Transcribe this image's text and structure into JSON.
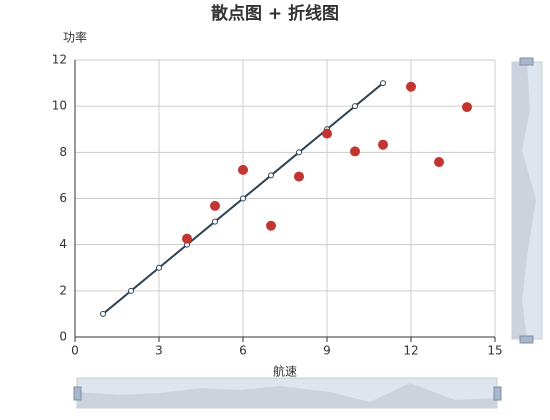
{
  "chart_data": {
    "type": "combo",
    "title": "散点图 + 折线图",
    "x_label": "航速",
    "y_label": "功率",
    "xlim": [
      0,
      15
    ],
    "xticks": [
      0,
      3,
      6,
      9,
      12,
      15
    ],
    "ylim": [
      0,
      12
    ],
    "yticks": [
      0,
      2,
      4,
      6,
      8,
      10,
      12
    ],
    "grid": true,
    "series": [
      {
        "type": "line",
        "color": "#2f4554",
        "x": [
          1,
          2,
          3,
          4,
          5,
          6,
          7,
          8,
          9,
          10,
          11
        ],
        "values": [
          1,
          2,
          3,
          4,
          5,
          6,
          7,
          8,
          9,
          10,
          11
        ]
      },
      {
        "type": "scatter",
        "color": "#c23531",
        "x": [
          4,
          5,
          6,
          7,
          8,
          9,
          10,
          11,
          12,
          13,
          14
        ],
        "values": [
          4.26,
          5.68,
          7.24,
          4.82,
          6.95,
          8.81,
          8.04,
          8.33,
          10.84,
          7.58,
          9.96
        ]
      }
    ]
  }
}
